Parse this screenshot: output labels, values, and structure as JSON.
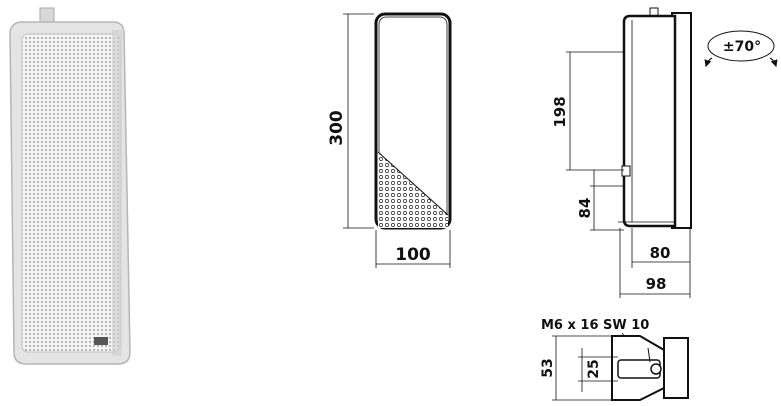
{
  "dimensions": {
    "height": "300",
    "width": "100",
    "mount_height": "198",
    "bracket_offset": "84",
    "depth_inner": "80",
    "depth_total": "98",
    "swivel_angle": "±70°",
    "bolt_spec": "M6 x 16 SW 10",
    "bracket_height": "53",
    "bracket_slot": "25"
  },
  "colors": {
    "line": "#111111",
    "photo_body": "#e6e6e6",
    "photo_shade": "#bdbdbd"
  },
  "icons": [
    "speaker-photo",
    "rotation-arrow-icon",
    "bolt-bracket-icon"
  ]
}
